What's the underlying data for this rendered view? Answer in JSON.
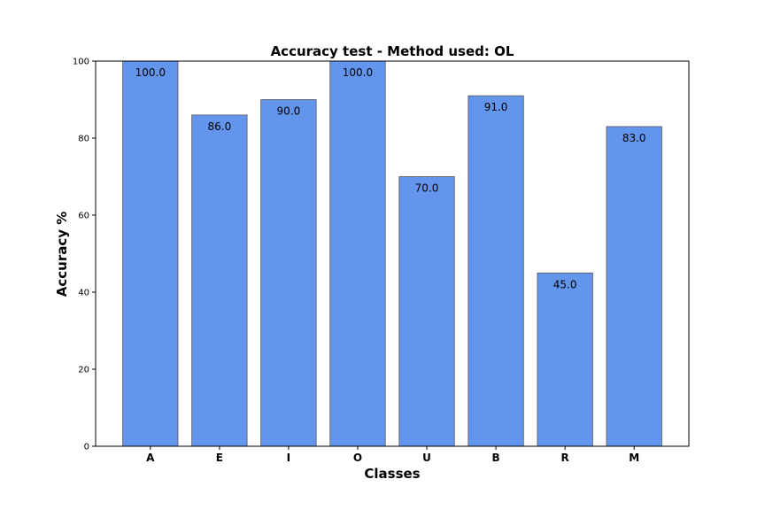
{
  "chart_data": {
    "type": "bar",
    "title": "Accuracy test - Method used: OL",
    "xlabel": "Classes",
    "ylabel": "Accuracy %",
    "categories": [
      "A",
      "E",
      "I",
      "O",
      "U",
      "B",
      "R",
      "M"
    ],
    "values": [
      100.0,
      86.0,
      90.0,
      100.0,
      70.0,
      91.0,
      45.0,
      83.0
    ],
    "value_labels": [
      "100.0",
      "86.0",
      "90.0",
      "100.0",
      "70.0",
      "91.0",
      "45.0",
      "83.0"
    ],
    "ylim": [
      0,
      100
    ],
    "yticks": [
      0,
      20,
      40,
      60,
      80,
      100
    ],
    "bar_color": "#6495ED",
    "bar_edge_color": "#555555",
    "grid": false
  }
}
